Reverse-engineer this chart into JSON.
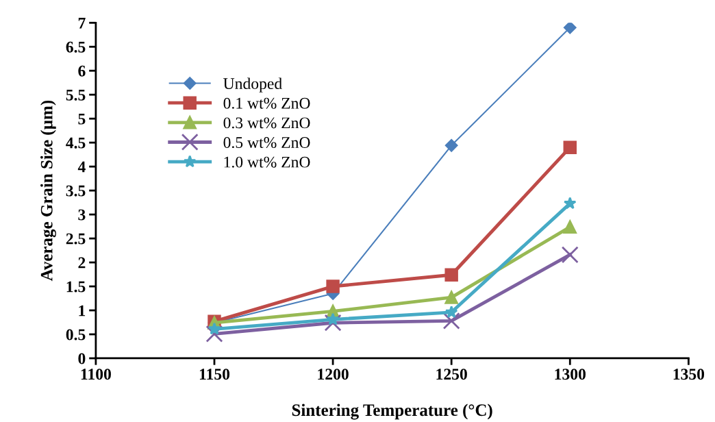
{
  "chart_data": {
    "type": "line",
    "xlabel": "Sintering Temperature (°C)",
    "ylabel": "Average Grain Size (µm)",
    "x": [
      1150,
      1200,
      1250,
      1300
    ],
    "series": [
      {
        "name": "Undoped",
        "color": "#4a7ebb",
        "marker": "diamond",
        "values": [
          0.74,
          1.35,
          4.44,
          6.9
        ]
      },
      {
        "name": "0.1 wt% ZnO",
        "color": "#be4b48",
        "marker": "square",
        "values": [
          0.77,
          1.5,
          1.74,
          4.4
        ]
      },
      {
        "name": "0.3 wt% ZnO",
        "color": "#98b954",
        "marker": "triangle",
        "values": [
          0.74,
          0.98,
          1.27,
          2.74
        ]
      },
      {
        "name": "0.5 wt% ZnO",
        "color": "#7d60a0",
        "marker": "cross",
        "values": [
          0.51,
          0.74,
          0.78,
          2.16
        ]
      },
      {
        "name": "1.0 wt% ZnO",
        "color": "#46aac5",
        "marker": "star",
        "values": [
          0.61,
          0.81,
          0.96,
          3.23
        ]
      }
    ],
    "xlim": [
      1100,
      1350
    ],
    "xticks": [
      1100,
      1150,
      1200,
      1250,
      1300,
      1350
    ],
    "ylim": [
      0,
      7
    ],
    "yticks": [
      0,
      0.5,
      1,
      1.5,
      2,
      2.5,
      3,
      3.5,
      4,
      4.5,
      5,
      5.5,
      6,
      6.5,
      7
    ],
    "grid": false,
    "legend": "top left"
  }
}
